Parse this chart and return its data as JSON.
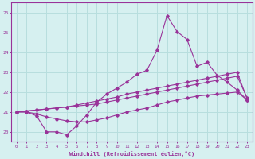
{
  "xlabel": "Windchill (Refroidissement éolien,°C)",
  "background_color": "#d6f0f0",
  "line_color": "#993399",
  "grid_color": "#b8dede",
  "xlim_min": -0.5,
  "xlim_max": 23.5,
  "ylim_min": 19.5,
  "ylim_max": 26.5,
  "yticks": [
    20,
    21,
    22,
    23,
    24,
    25,
    26
  ],
  "xticks": [
    0,
    1,
    2,
    3,
    4,
    5,
    6,
    7,
    8,
    9,
    10,
    11,
    12,
    13,
    14,
    15,
    16,
    17,
    18,
    19,
    20,
    21,
    22,
    23
  ],
  "series1_x": [
    0,
    1,
    2,
    3,
    4,
    5,
    6,
    7,
    8,
    9,
    10,
    11,
    12,
    13,
    14,
    15,
    16,
    17,
    18,
    19,
    20,
    21,
    22,
    23
  ],
  "series1_y": [
    21.0,
    21.0,
    20.8,
    20.0,
    20.0,
    19.85,
    20.3,
    20.85,
    21.5,
    21.9,
    22.2,
    22.5,
    22.9,
    23.1,
    24.1,
    25.85,
    25.05,
    24.65,
    23.3,
    23.5,
    22.85,
    22.5,
    22.1,
    21.6
  ],
  "series2_x": [
    0,
    1,
    2,
    3,
    4,
    5,
    6,
    7,
    8,
    9,
    10,
    11,
    12,
    13,
    14,
    15,
    16,
    17,
    18,
    19,
    20,
    21,
    22,
    23
  ],
  "series2_y": [
    21.0,
    21.05,
    21.1,
    21.15,
    21.2,
    21.25,
    21.35,
    21.45,
    21.55,
    21.65,
    21.75,
    21.9,
    22.0,
    22.1,
    22.2,
    22.3,
    22.4,
    22.5,
    22.6,
    22.7,
    22.8,
    22.9,
    23.0,
    21.65
  ],
  "series3_x": [
    0,
    1,
    2,
    3,
    4,
    5,
    6,
    7,
    8,
    9,
    10,
    11,
    12,
    13,
    14,
    15,
    16,
    17,
    18,
    19,
    20,
    21,
    22,
    23
  ],
  "series3_y": [
    21.0,
    21.05,
    21.1,
    21.15,
    21.2,
    21.25,
    21.3,
    21.35,
    21.4,
    21.5,
    21.6,
    21.7,
    21.8,
    21.9,
    22.0,
    22.1,
    22.2,
    22.3,
    22.4,
    22.5,
    22.6,
    22.7,
    22.8,
    21.7
  ],
  "series4_x": [
    0,
    1,
    2,
    3,
    4,
    5,
    6,
    7,
    8,
    9,
    10,
    11,
    12,
    13,
    14,
    15,
    16,
    17,
    18,
    19,
    20,
    21,
    22,
    23
  ],
  "series4_y": [
    21.0,
    21.0,
    20.9,
    20.75,
    20.65,
    20.55,
    20.5,
    20.5,
    20.6,
    20.7,
    20.85,
    21.0,
    21.1,
    21.2,
    21.35,
    21.5,
    21.6,
    21.7,
    21.8,
    21.85,
    21.9,
    21.95,
    22.0,
    21.6
  ]
}
